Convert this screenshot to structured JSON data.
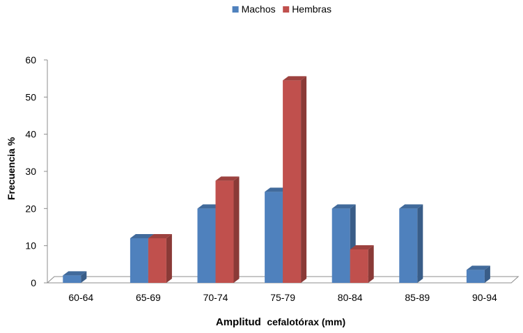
{
  "chart_data": {
    "type": "bar",
    "subtype": "3d-clustered-column",
    "categories": [
      "60-64",
      "65-69",
      "70-74",
      "75-79",
      "80-84",
      "85-89",
      "90-94"
    ],
    "series": [
      {
        "name": "Machos",
        "color": "#4f81bd",
        "values": [
          2,
          12,
          20,
          24.5,
          20,
          20,
          3.5
        ]
      },
      {
        "name": "Hembras",
        "color": "#c0504d",
        "values": [
          null,
          12,
          27.5,
          54.5,
          9,
          null,
          null
        ]
      }
    ],
    "title": "",
    "xlabel": "Amplitud cefalotórax (mm)",
    "xlabel_parts": {
      "main": "Amplitud",
      "small": "cefalotórax (mm)"
    },
    "ylabel": "Frecuencia %",
    "ylim": [
      0,
      60
    ],
    "yticks": [
      0,
      10,
      20,
      30,
      40,
      50,
      60
    ],
    "grid": false,
    "legend_position": "top-center"
  }
}
